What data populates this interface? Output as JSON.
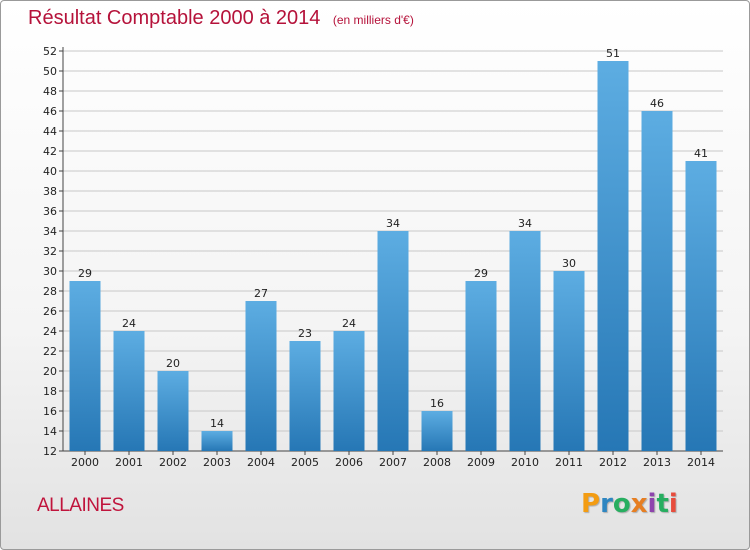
{
  "title": "Résultat Comptable 2000 à 2014",
  "subtitle": "(en milliers d'€)",
  "commune": "ALLAINES",
  "logo": {
    "letters": [
      "P",
      "r",
      "o",
      "x",
      "i",
      "t",
      "i"
    ],
    "colors": [
      "#f39c12",
      "#2e86c1",
      "#27ae60",
      "#e67e22",
      "#8e44ad",
      "#27ae60",
      "#e74c3c"
    ]
  },
  "colors": {
    "bar_light": "#5dade2",
    "bar_dark": "#2677b5",
    "title": "#b5123a"
  },
  "chart_data": {
    "type": "bar",
    "title": "Résultat Comptable 2000 à 2014",
    "subtitle": "(en milliers d'€)",
    "categories": [
      "2000",
      "2001",
      "2002",
      "2003",
      "2004",
      "2005",
      "2006",
      "2007",
      "2008",
      "2009",
      "2010",
      "2011",
      "2012",
      "2013",
      "2014"
    ],
    "values": [
      29,
      24,
      20,
      14,
      27,
      23,
      24,
      34,
      16,
      29,
      34,
      30,
      51,
      46,
      41
    ],
    "ylim": [
      12,
      52
    ],
    "yticks": [
      12,
      14,
      16,
      18,
      20,
      22,
      24,
      26,
      28,
      30,
      32,
      34,
      36,
      38,
      40,
      42,
      44,
      46,
      48,
      50,
      52
    ],
    "grid": true
  }
}
